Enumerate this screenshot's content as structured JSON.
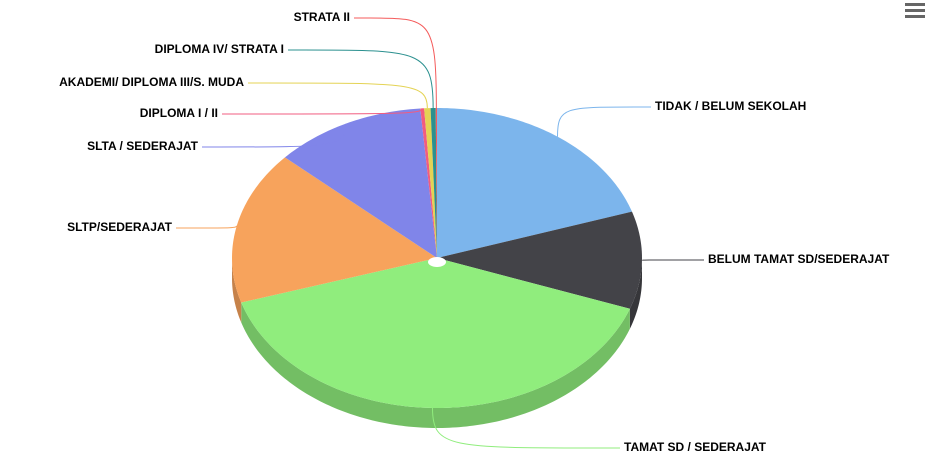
{
  "chart_data": {
    "type": "pie",
    "categories": [
      "TIDAK / BELUM SEKOLAH",
      "BELUM TAMAT SD/SEDERAJAT",
      "TAMAT SD / SEDERAJAT",
      "SLTP/SEDERAJAT",
      "SLTA / SEDERAJAT",
      "DIPLOMA I / II",
      "AKADEMI/ DIPLOMA III/S. MUDA",
      "DIPLOMA IV/ STRATA I",
      "STRATA II"
    ],
    "values": [
      20,
      10.5,
      39.7,
      16.5,
      12,
      0.3,
      0.5,
      0.4,
      0.1
    ],
    "colors": [
      "#7cb5ec",
      "#434348",
      "#90ed7d",
      "#f7a35c",
      "#8085e9",
      "#f15c80",
      "#e4d354",
      "#2b908f",
      "#f45b5b"
    ]
  }
}
